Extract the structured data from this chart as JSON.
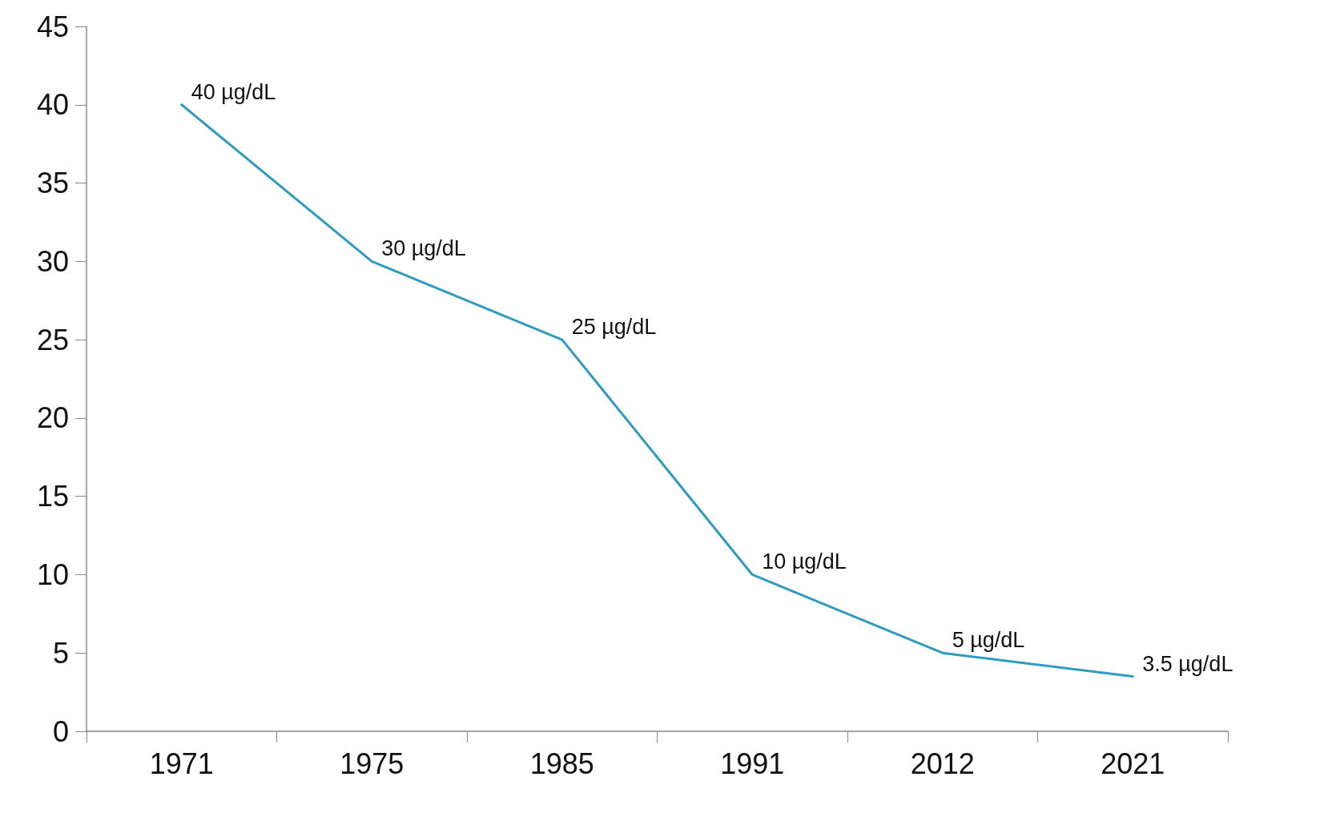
{
  "chart_data": {
    "type": "line",
    "categories": [
      "1971",
      "1975",
      "1985",
      "1991",
      "2012",
      "2021"
    ],
    "series": [
      {
        "color": "#2e9bbf",
        "values": [
          40,
          30,
          25,
          10,
          5,
          3.5
        ],
        "value_labels": [
          "40 µg/dL",
          "30 µg/dL",
          "25 µg/dL",
          "10 µg/dL",
          "5 µg/dL",
          "3.5 µg/dL"
        ]
      }
    ],
    "ylim": [
      0,
      45
    ],
    "yticks": [
      0,
      5,
      10,
      15,
      20,
      25,
      30,
      35,
      40,
      45
    ],
    "marker": "none",
    "line_style": "solid"
  }
}
